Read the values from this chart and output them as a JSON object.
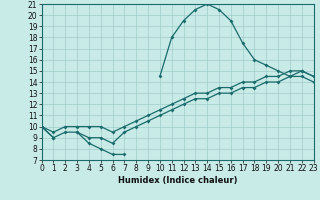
{
  "title": "",
  "xlabel": "Humidex (Indice chaleur)",
  "background_color": "#c8ebe8",
  "line_color": "#1a6b6b",
  "x": [
    0,
    1,
    2,
    3,
    4,
    5,
    6,
    7,
    8,
    9,
    10,
    11,
    12,
    13,
    14,
    15,
    16,
    17,
    18,
    19,
    20,
    21,
    22,
    23
  ],
  "curve_main": [
    10,
    9,
    null,
    9.5,
    8.5,
    8,
    7.5,
    7.5,
    null,
    null,
    14.5,
    18,
    19.5,
    20.5,
    21,
    20.5,
    19.5,
    17.5,
    16,
    15.5,
    15,
    14.5,
    15,
    14.5
  ],
  "curve_low1": [
    10,
    9,
    9.5,
    9.5,
    9,
    9,
    8.5,
    9.5,
    10,
    10.5,
    11,
    11.5,
    12,
    12.5,
    12.5,
    13,
    13,
    13.5,
    13.5,
    14,
    14,
    14.5,
    14.5,
    14
  ],
  "curve_low2": [
    10,
    9.5,
    10,
    10,
    10,
    10,
    9.5,
    10,
    10.5,
    11,
    11.5,
    12,
    12.5,
    13,
    13,
    13.5,
    13.5,
    14,
    14,
    14.5,
    14.5,
    15,
    15,
    14.5
  ],
  "xlim": [
    0,
    23
  ],
  "ylim": [
    7,
    21
  ],
  "yticks": [
    7,
    8,
    9,
    10,
    11,
    12,
    13,
    14,
    15,
    16,
    17,
    18,
    19,
    20,
    21
  ],
  "xticks": [
    0,
    1,
    2,
    3,
    4,
    5,
    6,
    7,
    8,
    9,
    10,
    11,
    12,
    13,
    14,
    15,
    16,
    17,
    18,
    19,
    20,
    21,
    22,
    23
  ],
  "marker": "D",
  "markersize": 2.0,
  "linewidth": 0.9,
  "tick_labelsize": 5.5,
  "xlabel_fontsize": 6.0,
  "grid_color": "#a0cccc",
  "grid_lw": 0.5
}
